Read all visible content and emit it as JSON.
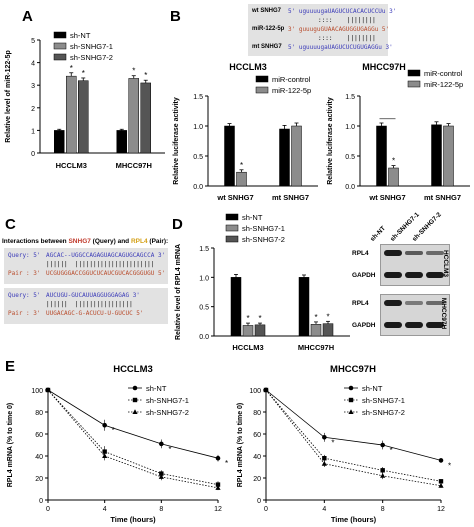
{
  "panels": {
    "A": "A",
    "B": "B",
    "C": "C",
    "D": "D",
    "E": "E"
  },
  "colors": {
    "black": "#000000",
    "gray": "#8c8c8c",
    "dark": "#555555",
    "seq_blue": "#3a3ab8",
    "seq_red": "#b84a2a",
    "snhg7": "#c0392b",
    "rpl4": "#d4a017"
  },
  "B_sequences": {
    "wt_label": "wt SNHG7",
    "wt_seq": "5' uguuuugaUAGUCUCACACUCCUu 3'",
    "wt_bars": "::::    ||||||||",
    "mir_label": "miR-122-5p",
    "mir_seq": "3' guuuguGUAACAGUGGUGAGGu 5'",
    "mir_bars": "::::    ||||||||",
    "mt_label": "mt SNHG7",
    "mt_seq": "5' uguuuugaUAGUCUCUGUGAGGu 3'"
  },
  "C_interactions": {
    "title_pre": "Interactions between ",
    "title_q": "SNHG7",
    "title_mid": " (Query) and ",
    "title_p": "RPL4",
    "title_post": " (Pair):",
    "q1_label": "Query: 5'",
    "q1_seq": "AGCAC--UGGCCAGAGUAGCAGUGCAGCCA 3'",
    "q1_bars": "||||||  ||||||||||||||||||||||",
    "p1_label": "Pair : 3'",
    "p1_seq": "UCGUGGGACCGGUCUCAUCGUCACGGGUGU 5'",
    "q2_label": "Query: 5'",
    "q2_seq": "AUCUGU-GUCAUUAGGUGGAGAG 3'",
    "q2_bars": "||||||  ||||||||||||||||",
    "p2_label": "Pair : 3'",
    "p2_seq": "UUGACAGC-G-ACUCU-U-GUCUC 5'"
  },
  "D_blot": {
    "cols": [
      "sh-NT",
      "sh-SNHG7-1",
      "sh-SNHG7-2"
    ],
    "rows1": [
      "RPL4",
      "GAPDH"
    ],
    "rows2": [
      "RPL4",
      "GAPDH"
    ],
    "cell1": "HCCLM3",
    "cell2": "MHCC97H"
  },
  "chart_data": [
    {
      "id": "A",
      "type": "bar",
      "categories": [
        "HCCLM3",
        "MHCC97H"
      ],
      "series": [
        {
          "name": "sh-NT",
          "values": [
            1.0,
            1.0
          ],
          "errors": [
            0.05,
            0.05
          ],
          "color": "#000000",
          "stars": [
            false,
            false
          ]
        },
        {
          "name": "sh-SNHG7-1",
          "values": [
            3.4,
            3.3
          ],
          "errors": [
            0.15,
            0.12
          ],
          "color": "#8c8c8c",
          "stars": [
            true,
            true
          ]
        },
        {
          "name": "sh-SNHG7-2",
          "values": [
            3.2,
            3.1
          ],
          "errors": [
            0.12,
            0.12
          ],
          "color": "#555555",
          "stars": [
            true,
            true
          ]
        }
      ],
      "ylabel": "Relative level of miR-122-5p",
      "ylim": [
        0,
        5
      ],
      "yticks": [
        0,
        1,
        2,
        3,
        4,
        5
      ]
    },
    {
      "id": "B1",
      "type": "bar",
      "title": "HCCLM3",
      "categories": [
        "wt SNHG7",
        "mt SNHG7"
      ],
      "series": [
        {
          "name": "miR-control",
          "values": [
            1.0,
            0.95
          ],
          "errors": [
            0.04,
            0.06
          ],
          "color": "#000000",
          "stars": [
            false,
            false
          ]
        },
        {
          "name": "miR-122-5p",
          "values": [
            0.23,
            1.0
          ],
          "errors": [
            0.04,
            0.05
          ],
          "color": "#8c8c8c",
          "stars": [
            true,
            false
          ]
        }
      ],
      "ylabel": "Relative luciferase activity",
      "ylim": [
        0,
        1.5
      ],
      "yticks": [
        0.0,
        0.5,
        1.0,
        1.5
      ],
      "tick_fmt": "1"
    },
    {
      "id": "B2",
      "type": "bar",
      "title": "MHCC97H",
      "categories": [
        "wt SNHG7",
        "mt SNHG7"
      ],
      "series": [
        {
          "name": "miR-control",
          "values": [
            1.0,
            1.02
          ],
          "errors": [
            0.05,
            0.05
          ],
          "color": "#000000",
          "stars": [
            false,
            false
          ]
        },
        {
          "name": "miR-122-5p",
          "values": [
            0.3,
            1.0
          ],
          "errors": [
            0.04,
            0.04
          ],
          "color": "#8c8c8c",
          "stars": [
            true,
            false
          ]
        }
      ],
      "ylabel": "Relative luciferase activity",
      "ylim": [
        0,
        1.5
      ],
      "yticks": [
        0.0,
        0.5,
        1.0,
        1.5
      ],
      "tick_fmt": "1"
    },
    {
      "id": "D",
      "type": "bar",
      "categories": [
        "HCCLM3",
        "MHCC97H"
      ],
      "series": [
        {
          "name": "sh-NT",
          "values": [
            1.0,
            1.0
          ],
          "errors": [
            0.05,
            0.04
          ],
          "color": "#000000",
          "stars": [
            false,
            false
          ]
        },
        {
          "name": "sh-SNHG7-1",
          "values": [
            0.18,
            0.2
          ],
          "errors": [
            0.04,
            0.04
          ],
          "color": "#8c8c8c",
          "stars": [
            true,
            true
          ]
        },
        {
          "name": "sh-SNHG7-2",
          "values": [
            0.19,
            0.21
          ],
          "errors": [
            0.03,
            0.04
          ],
          "color": "#555555",
          "stars": [
            true,
            true
          ]
        }
      ],
      "ylabel": "Relative level of RPL4 mRNA",
      "ylim": [
        0,
        1.5
      ],
      "yticks": [
        0.0,
        0.5,
        1.0,
        1.5
      ],
      "tick_fmt": "1"
    },
    {
      "id": "E1",
      "type": "line",
      "title": "HCCLM3",
      "x": [
        0,
        4,
        8,
        12
      ],
      "series": [
        {
          "name": "sh-NT",
          "values": [
            100,
            68,
            51,
            38
          ],
          "errors": [
            2,
            5,
            4,
            3
          ],
          "marker": "circle",
          "dash": false
        },
        {
          "name": "sh-SNHG7-1",
          "values": [
            100,
            44,
            24,
            14
          ],
          "errors": [
            2,
            5,
            3,
            3
          ],
          "marker": "square",
          "dash": true
        },
        {
          "name": "sh-SNHG7-2",
          "values": [
            100,
            40,
            21,
            11
          ],
          "errors": [
            2,
            4,
            3,
            2
          ],
          "marker": "triangle",
          "dash": true
        }
      ],
      "xlabel": "Time (hours)",
      "ylabel": "RPL4 mRNA (% to time 0)",
      "xlim": [
        0,
        12
      ],
      "xticks": [
        0,
        4,
        8,
        12
      ],
      "ylim": [
        0,
        100
      ],
      "yticks": [
        0,
        20,
        40,
        60,
        80,
        100
      ],
      "star_x": [
        4,
        8,
        12
      ]
    },
    {
      "id": "E2",
      "type": "line",
      "title": "MHCC97H",
      "x": [
        0,
        4,
        8,
        12
      ],
      "series": [
        {
          "name": "sh-NT",
          "values": [
            100,
            57,
            50,
            36
          ],
          "errors": [
            2,
            4,
            4,
            2
          ],
          "marker": "circle",
          "dash": false
        },
        {
          "name": "sh-SNHG7-1",
          "values": [
            100,
            38,
            27,
            17
          ],
          "errors": [
            2,
            3,
            3,
            2
          ],
          "marker": "square",
          "dash": true
        },
        {
          "name": "sh-SNHG7-2",
          "values": [
            100,
            33,
            22,
            13
          ],
          "errors": [
            2,
            3,
            3,
            2
          ],
          "marker": "triangle",
          "dash": true
        }
      ],
      "xlabel": "Time (hours)",
      "ylabel": "RPL4 mRNA (% to time 0)",
      "xlim": [
        0,
        12
      ],
      "xticks": [
        0,
        4,
        8,
        12
      ],
      "ylim": [
        0,
        100
      ],
      "yticks": [
        0,
        20,
        40,
        60,
        80,
        100
      ],
      "star_x": [
        4,
        8,
        12
      ]
    }
  ]
}
